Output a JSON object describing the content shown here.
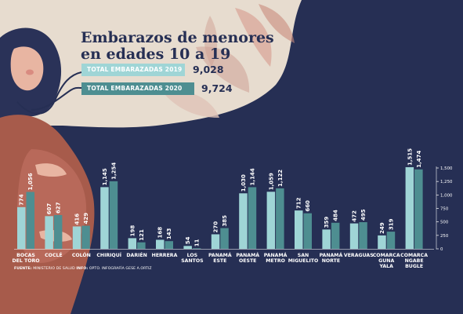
{
  "title_line1": "Embarazos de menores",
  "title_line2": "en edades 10 a 19",
  "totals": [
    {
      "label": "TOTAL EMBARAZADAS 2019",
      "value": "9,028"
    },
    {
      "label": "TOTAL EMBARAZADAS 2020",
      "value": "9,724"
    }
  ],
  "source": {
    "fuente_label": "FUENTE:",
    "fuente_text": " MINISTERIO DE SALUD",
    "info_label": "INFO:",
    "info_text": " OPTO. INFOGRAFÍA GESE A.ORTIZ"
  },
  "colors": {
    "background": "#262f54",
    "bar_2019": "#9fd5d6",
    "bar_2020": "#4e8e91",
    "paper": "#e8ddd0"
  },
  "chart_data": {
    "type": "bar",
    "categories": [
      [
        "BOCAS",
        "DEL TORO"
      ],
      [
        "COCLÉ"
      ],
      [
        "COLÓN"
      ],
      [
        "CHIRIQUÍ"
      ],
      [
        "DARIÉN"
      ],
      [
        "HERRERA"
      ],
      [
        "LOS",
        "SANTOS"
      ],
      [
        "PANAMÁ",
        "ESTE"
      ],
      [
        "PANAMÁ",
        "OESTE"
      ],
      [
        "PANAMÁ",
        "METRO"
      ],
      [
        "SAN",
        "MIGUELITO"
      ],
      [
        "PANAMÁ",
        "NORTE"
      ],
      [
        "VERAGUAS"
      ],
      [
        "COMARCA",
        "GUNA",
        "YALA"
      ],
      [
        "COMARCA",
        "NGABE",
        "BUGLE"
      ]
    ],
    "series": [
      {
        "values": [
          774,
          607,
          416,
          1145,
          198,
          168,
          54,
          270,
          1030,
          1059,
          712,
          359,
          472,
          249,
          1515
        ],
        "labels": [
          "774",
          "607",
          "416",
          "1,145",
          "198",
          "168",
          "54",
          "270",
          "1,030",
          "1,059",
          "712",
          "359",
          "472",
          "249",
          "1,515"
        ]
      },
      {
        "values": [
          1056,
          627,
          429,
          1254,
          121,
          143,
          11,
          385,
          1144,
          1122,
          660,
          484,
          495,
          319,
          1474
        ],
        "labels": [
          "1,056",
          "627",
          "429",
          "1,254",
          "121",
          "143",
          "11",
          "385",
          "1,144",
          "1,122",
          "660",
          "484",
          "495",
          "319",
          "1,474"
        ]
      }
    ],
    "yticks": [
      0,
      250,
      500,
      750,
      1000,
      1250,
      1500
    ],
    "ytick_labels": [
      "0",
      "250",
      "500",
      "750",
      "1,000",
      "1,250",
      "1,500"
    ],
    "ylim": [
      0,
      1500
    ],
    "legend": "none",
    "grid": false
  }
}
